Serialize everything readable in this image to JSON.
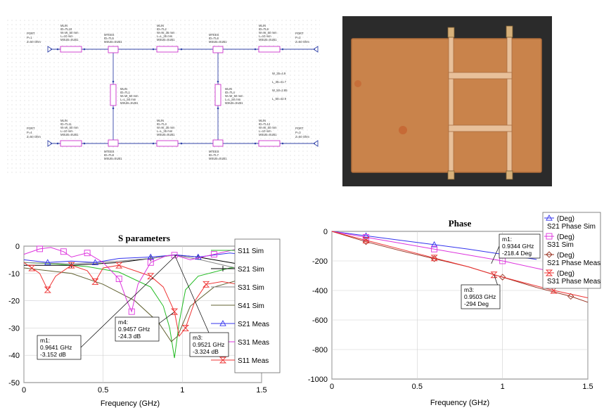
{
  "schematic": {
    "ports": [
      {
        "name": "PORT",
        "id": "P=1",
        "z": "Z=50 Ohm"
      },
      {
        "name": "PORT",
        "id": "P=2",
        "z": "Z=50 Ohm"
      },
      {
        "name": "PORT",
        "id": "P=4",
        "z": "Z=50 Ohm"
      },
      {
        "name": "PORT",
        "id": "P=3",
        "z": "Z=50 Ohm"
      }
    ],
    "series_lines": [
      {
        "type": "MLIN",
        "id": "ID=TL10",
        "w": "W=W_50 mm",
        "l": "L=10 mm",
        "sub": "MSUB=SUB1"
      },
      {
        "type": "MLIN",
        "id": "ID=TL2",
        "w": "W=W_35 mm",
        "l": "L=L_35 mm",
        "sub": "MSUB=SUB1"
      },
      {
        "type": "MLIN",
        "id": "ID=TL9",
        "w": "W=W_50 mm",
        "l": "L=10 mm",
        "sub": "MSUB=SUB1"
      },
      {
        "type": "MLIN",
        "id": "ID=TL11",
        "w": "W=W_50 mm",
        "l": "L=10 mm",
        "sub": "MSUB=SUB1"
      },
      {
        "type": "MLIN",
        "id": "ID=TL3",
        "w": "W=W_35 mm",
        "l": "L=L_35 mm",
        "sub": "MSUB=SUB1"
      },
      {
        "type": "MLIN",
        "id": "ID=TL12",
        "w": "W=W_50 mm",
        "l": "L=10 mm",
        "sub": "MSUB=SUB1"
      }
    ],
    "shunt_lines": [
      {
        "type": "MLIN",
        "id": "ID=TL1",
        "w": "W=W_50 mm",
        "l": "L=L_50 mm",
        "sub": "MSUB=SUB1"
      },
      {
        "type": "MLIN",
        "id": "ID=TL4",
        "w": "W=W_50 mm",
        "l": "L=L_50 mm",
        "sub": "MSUB=SUB1"
      }
    ],
    "tees": [
      {
        "type": "MTEES",
        "id": "ID=TL5",
        "sub": "MSUB=SUB1"
      },
      {
        "type": "MTEES",
        "id": "ID=TL6",
        "sub": "MSUB=SUB1"
      },
      {
        "type": "MTEES",
        "id": "ID=TL8",
        "sub": "MSUB=SUB1"
      },
      {
        "type": "MTEES",
        "id": "ID=TL7",
        "sub": "MSUB=SUB1"
      }
    ],
    "equations": [
      "W_35=4.9",
      "L_35=41.7",
      "W_50=2.85",
      "L_50=42.9"
    ]
  },
  "photo": {
    "board_color": "#c9834b",
    "copper_color": "#e8c09a",
    "background_color": "#2b2b2b"
  },
  "s_chart": {
    "title": "S parameters",
    "xlabel": "Frequency (GHz)",
    "x_ticks": [
      "0",
      "0.5",
      "1",
      "1.5"
    ],
    "y_ticks": [
      "0",
      "-10",
      "-20",
      "-30",
      "-40",
      "-50"
    ],
    "legend": [
      "S11 Sim",
      "S21 Sim",
      "S31 Sim",
      "S41 Sim",
      "S21 Meas",
      "S31 Meas",
      "S11 Meas"
    ],
    "markers": [
      {
        "name": "m1:",
        "freq": "0.9641 GHz",
        "value": "-3.152 dB"
      },
      {
        "name": "m4:",
        "freq": "0.9457 GHz",
        "value": "-24.3 dB"
      },
      {
        "name": "m3:",
        "freq": "0.9521 GHz",
        "value": "-3.324 dB"
      }
    ]
  },
  "p_chart": {
    "title": "Phase",
    "xlabel": "Frequency (GHz)",
    "x_ticks": [
      "0",
      "0.5",
      "1",
      "1.5"
    ],
    "y_ticks": [
      "0",
      "-200",
      "-400",
      "-600",
      "-800",
      "-1000"
    ],
    "legend": [
      {
        "unit": "(Deg)",
        "name": "S21 Phase Sim"
      },
      {
        "unit": "(Deg)",
        "name": "S31 Sim"
      },
      {
        "unit": "(Deg)",
        "name": "S21 Phase Meas"
      },
      {
        "unit": "(Deg)",
        "name": "S31 Phase Meas"
      }
    ],
    "markers": [
      {
        "name": "m1:",
        "freq": "0.9344 GHz",
        "value": "-218.4 Deg"
      },
      {
        "name": "m3:",
        "freq": "0.9503 GHz",
        "value": "-294 Deg"
      }
    ]
  },
  "chart_data": [
    {
      "type": "line",
      "title": "S parameters",
      "xlabel": "Frequency (GHz)",
      "ylabel": "",
      "xlim": [
        0,
        1.5
      ],
      "ylim": [
        -50,
        0
      ],
      "legend_position": "right",
      "series": [
        {
          "name": "S11 Sim",
          "color": "#22bb22",
          "x": [
            0,
            0.2,
            0.4,
            0.6,
            0.8,
            0.88,
            0.92,
            0.95,
            0.98,
            1.02,
            1.1,
            1.3,
            1.5
          ],
          "y": [
            -6,
            -6.5,
            -7.5,
            -9.5,
            -15,
            -22,
            -30,
            -41,
            -28,
            -16,
            -11,
            -8,
            -7
          ]
        },
        {
          "name": "S21 Sim",
          "color": "#000000",
          "x": [
            0,
            0.3,
            0.6,
            0.8,
            0.95,
            1.1,
            1.3,
            1.5
          ],
          "y": [
            -7,
            -7,
            -6,
            -4.5,
            -3.2,
            -4,
            -6,
            -8
          ]
        },
        {
          "name": "S31 Sim",
          "color": "#888888",
          "x": [
            0,
            0.3,
            0.6,
            0.8,
            0.95,
            1.1,
            1.3,
            1.5
          ],
          "y": [
            -6,
            -6.5,
            -5.5,
            -4.5,
            -3.3,
            -4.8,
            -7.5,
            -10
          ]
        },
        {
          "name": "S41 Sim",
          "color": "#606030",
          "x": [
            0,
            0.3,
            0.5,
            0.7,
            0.85,
            0.93,
            0.97,
            1.05,
            1.2,
            1.5
          ],
          "y": [
            -8,
            -10,
            -14,
            -20,
            -28,
            -35,
            -33,
            -22,
            -15,
            -10
          ]
        },
        {
          "name": "S21 Meas",
          "color": "#3333ee",
          "x": [
            0,
            0.15,
            0.3,
            0.45,
            0.6,
            0.8,
            0.96,
            1.1,
            1.3,
            1.45
          ],
          "y": [
            -5,
            -6,
            -5.5,
            -6,
            -4.5,
            -4,
            -3.2,
            -4,
            -2.5,
            -3.5
          ]
        },
        {
          "name": "S31 Meas",
          "color": "#dd33dd",
          "x": [
            0,
            0.1,
            0.17,
            0.25,
            0.3,
            0.4,
            0.5,
            0.6,
            0.65,
            0.68,
            0.72,
            0.8,
            0.9,
            0.95,
            1.05,
            1.2,
            1.35,
            1.45
          ],
          "y": [
            -3,
            -1,
            -0.5,
            -2,
            -4,
            -2.5,
            -6,
            -12,
            -20,
            -24,
            -14,
            -6,
            -3.5,
            -3.3,
            -5,
            -3,
            -1,
            -1.5
          ]
        },
        {
          "name": "S11 Meas",
          "color": "#ee3333",
          "x": [
            0,
            0.05,
            0.1,
            0.15,
            0.2,
            0.3,
            0.4,
            0.45,
            0.5,
            0.6,
            0.7,
            0.8,
            0.88,
            0.95,
            0.98,
            1.02,
            1.08,
            1.15,
            1.25,
            1.35,
            1.45
          ],
          "y": [
            -6,
            -8,
            -10,
            -16,
            -11,
            -7,
            -9,
            -13,
            -8,
            -7,
            -9,
            -11,
            -15,
            -24,
            -33,
            -30,
            -20,
            -14,
            -13,
            -14,
            -16
          ]
        }
      ]
    },
    {
      "type": "line",
      "title": "Phase",
      "xlabel": "Frequency (GHz)",
      "ylabel": "",
      "xlim": [
        0,
        1.5
      ],
      "ylim": [
        -1000,
        0
      ],
      "legend_position": "top-right",
      "series": [
        {
          "name": "S21 Phase Sim",
          "color": "#3333ee",
          "x": [
            0,
            0.2,
            0.4,
            0.6,
            0.8,
            1.0,
            1.2
          ],
          "y": [
            0,
            -30,
            -60,
            -90,
            -120,
            -155,
            -190
          ]
        },
        {
          "name": "S31 Sim",
          "color": "#dd33dd",
          "x": [
            0,
            0.2,
            0.4,
            0.6,
            0.8,
            1.0,
            1.2,
            1.4,
            1.5
          ],
          "y": [
            0,
            -40,
            -80,
            -120,
            -160,
            -200,
            -250,
            -300,
            -330
          ]
        },
        {
          "name": "S21 Phase Meas",
          "color": "#993322",
          "x": [
            0,
            0.2,
            0.4,
            0.6,
            0.8,
            1.0,
            1.2,
            1.4,
            1.5
          ],
          "y": [
            0,
            -70,
            -130,
            -185,
            -240,
            -310,
            -380,
            -440,
            -480
          ]
        },
        {
          "name": "S31 Phase Meas",
          "color": "#ee3333",
          "x": [
            0,
            0.2,
            0.4,
            0.6,
            0.8,
            0.95,
            1.1,
            1.3,
            1.5
          ],
          "y": [
            0,
            -60,
            -120,
            -180,
            -240,
            -294,
            -340,
            -400,
            -450
          ]
        }
      ]
    }
  ]
}
